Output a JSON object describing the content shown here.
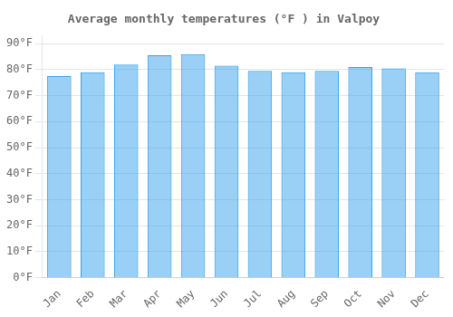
{
  "chart_data": {
    "type": "bar",
    "title": "Average monthly temperatures (°F ) in Valpoy",
    "categories": [
      "Jan",
      "Feb",
      "Mar",
      "Apr",
      "May",
      "Jun",
      "Jul",
      "Aug",
      "Sep",
      "Oct",
      "Nov",
      "Dec"
    ],
    "values": [
      77.5,
      79.0,
      82.0,
      85.5,
      86.0,
      81.5,
      79.5,
      79.0,
      79.5,
      81.0,
      80.5,
      79.0
    ],
    "ylim": [
      0,
      93
    ],
    "yticks": [
      {
        "value": 0,
        "label": "0°F"
      },
      {
        "value": 10,
        "label": "10°F"
      },
      {
        "value": 20,
        "label": "20°F"
      },
      {
        "value": 30,
        "label": "30°F"
      },
      {
        "value": 40,
        "label": "40°F"
      },
      {
        "value": 50,
        "label": "50°F"
      },
      {
        "value": 60,
        "label": "60°F"
      },
      {
        "value": 70,
        "label": "70°F"
      },
      {
        "value": 80,
        "label": "80°F"
      },
      {
        "value": 90,
        "label": "90°F"
      }
    ],
    "grid": true
  }
}
